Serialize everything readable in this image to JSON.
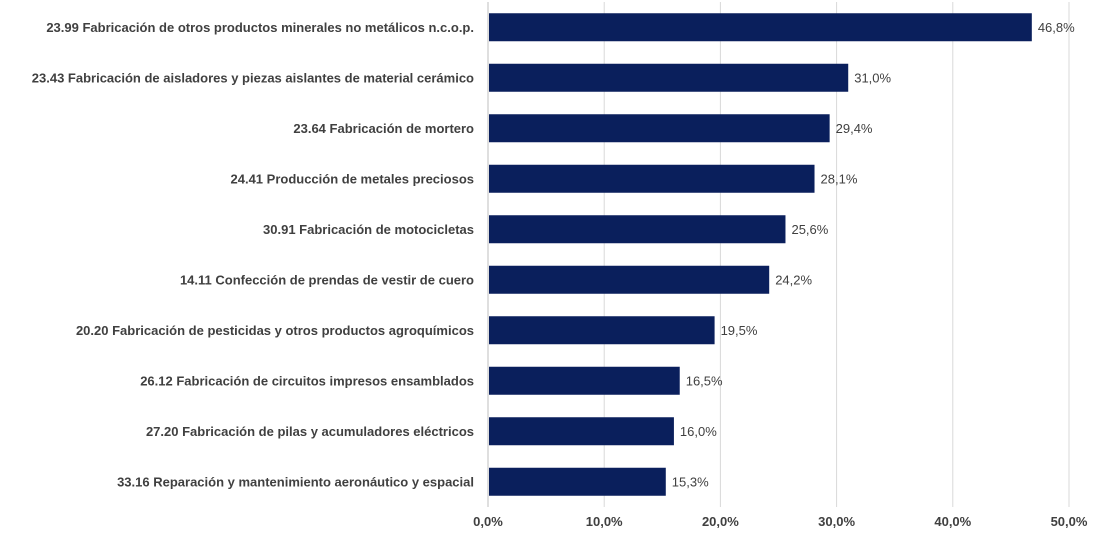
{
  "chart_data": {
    "type": "bar",
    "orientation": "horizontal",
    "categories": [
      "23.99 Fabricación de otros productos minerales no metálicos n.c.o.p.",
      "23.43 Fabricación de aisladores y piezas aislantes de material cerámico",
      "23.64 Fabricación de mortero",
      "24.41 Producción de metales preciosos",
      "30.91 Fabricación de motocicletas",
      "14.11 Confección de prendas de vestir de cuero",
      "20.20 Fabricación de pesticidas y otros productos agroquímicos",
      "26.12 Fabricación de circuitos impresos ensamblados",
      "27.20 Fabricación de pilas y acumuladores eléctricos",
      "33.16 Reparación y mantenimiento aeronáutico y espacial"
    ],
    "values": [
      46.8,
      31.0,
      29.4,
      28.1,
      25.6,
      24.2,
      19.5,
      16.5,
      16.0,
      15.3
    ],
    "value_labels": [
      "46,8%",
      "31,0%",
      "29,4%",
      "28,1%",
      "25,6%",
      "24,2%",
      "19,5%",
      "16,5%",
      "16,0%",
      "15,3%"
    ],
    "xlim": [
      0,
      50
    ],
    "x_ticks": [
      0,
      10,
      20,
      30,
      40,
      50
    ],
    "x_tick_labels": [
      "0,0%",
      "10,0%",
      "20,0%",
      "30,0%",
      "40,0%",
      "50,0%"
    ],
    "title": "",
    "xlabel": "",
    "ylabel": "",
    "grid": "vertical",
    "legend": "none",
    "bar_color": "#0a1f5c"
  }
}
